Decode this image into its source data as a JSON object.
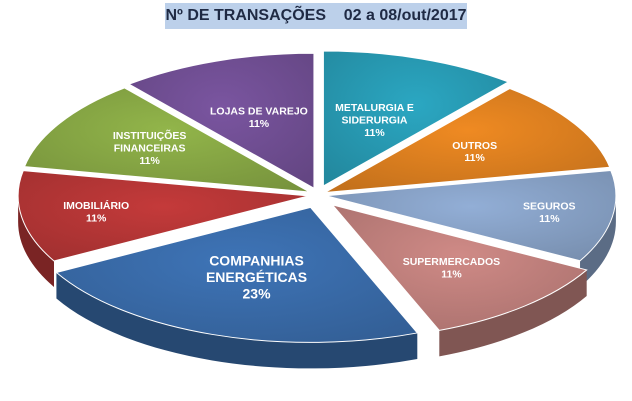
{
  "chart_data": {
    "type": "pie",
    "title": "Nº DE TRANSAÇÕES    02 a 08/out/2017",
    "slices": [
      {
        "lines": [
          "METALURGIA E",
          "SIDERURGIA"
        ],
        "value_label": "11%",
        "value": 11,
        "color": "#2ba7c2"
      },
      {
        "lines": [
          "OUTROS"
        ],
        "value_label": "11%",
        "value": 11,
        "color": "#ef8a22"
      },
      {
        "lines": [
          "SEGUROS"
        ],
        "value_label": "11%",
        "value": 11,
        "color": "#92aed6"
      },
      {
        "lines": [
          "SUPERMERCADOS"
        ],
        "value_label": "11%",
        "value": 11,
        "color": "#cf8a86"
      },
      {
        "lines": [
          "COMPANHIAS",
          "ENERGÉTICAS"
        ],
        "value_label": "23%",
        "value": 23,
        "color": "#3e74b7"
      },
      {
        "lines": [
          "IMOBILIÁRIO"
        ],
        "value_label": "11%",
        "value": 11,
        "color": "#c43a3a"
      },
      {
        "lines": [
          "INSTITUIÇÕES",
          "FINANCEIRAS"
        ],
        "value_label": "11%",
        "value": 11,
        "color": "#92b54a"
      },
      {
        "lines": [
          "LOJAS DE VAREJO"
        ],
        "value_label": "11%",
        "value": 11,
        "color": "#7a55a0"
      }
    ]
  }
}
